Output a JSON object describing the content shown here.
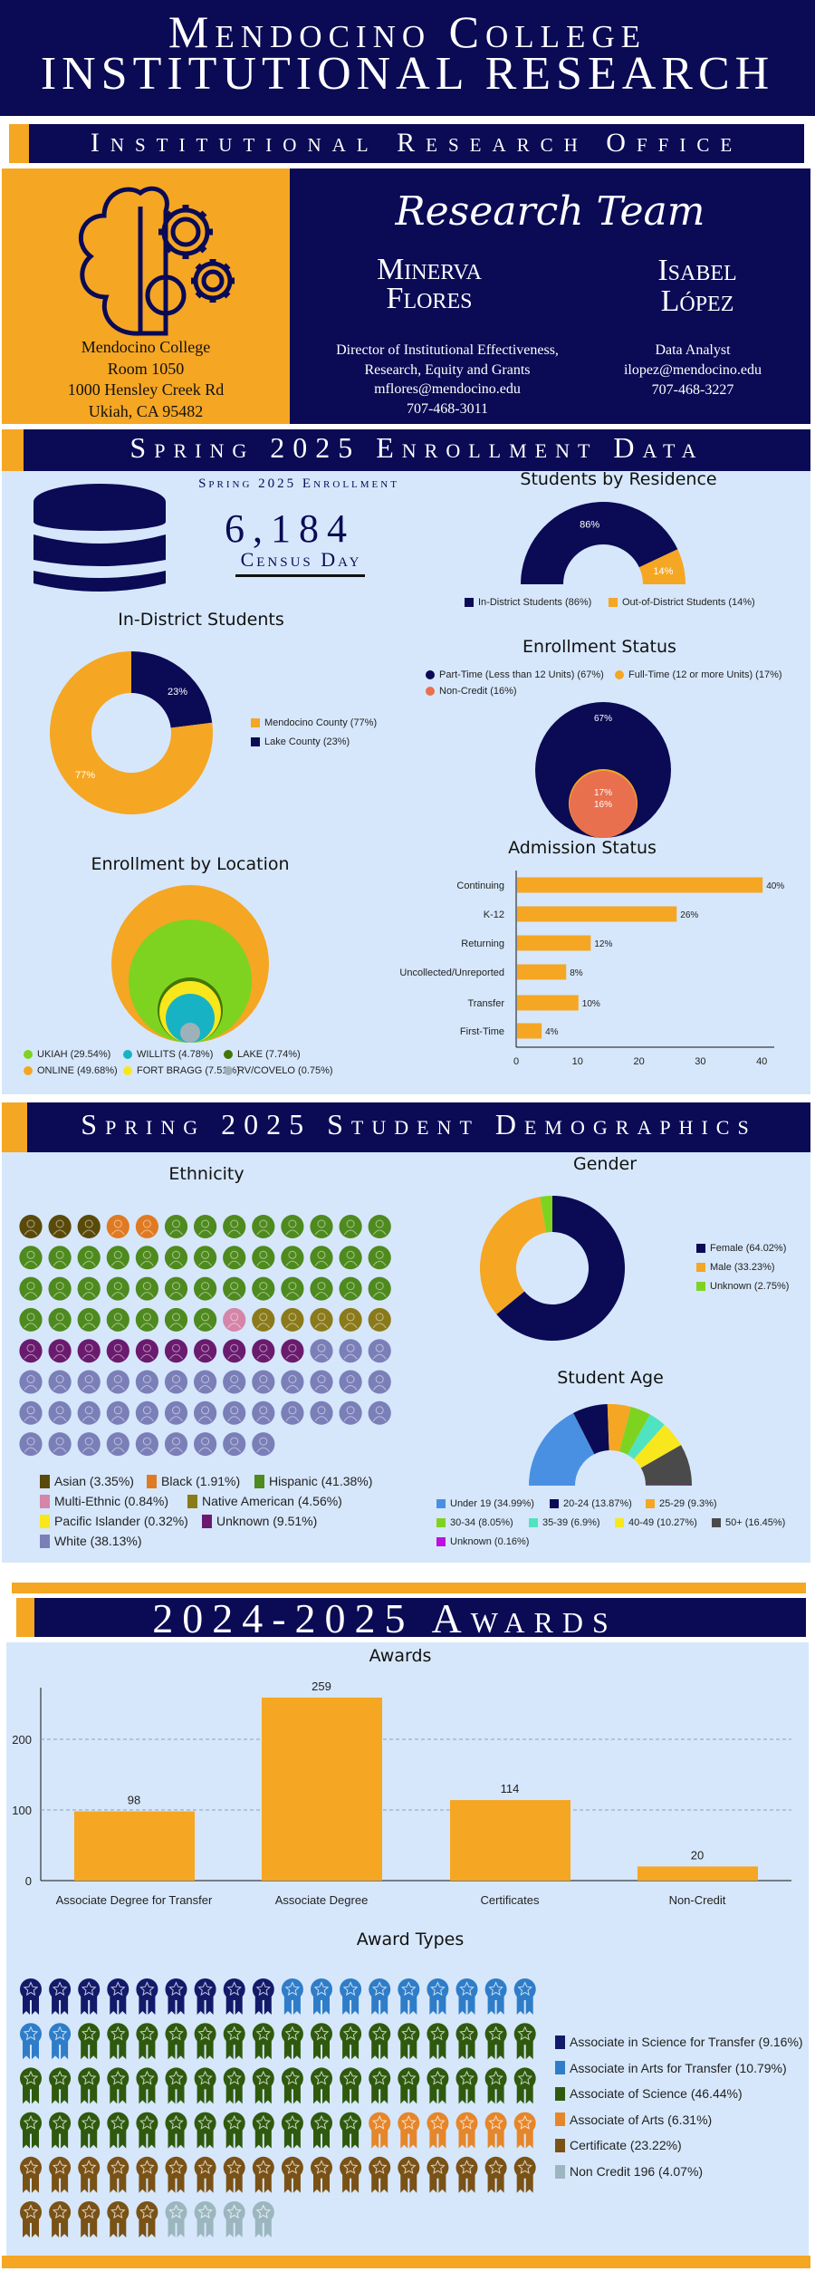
{
  "header": {
    "title_line1": "Mendocino College",
    "title_line2": "INSTITUTIONAL RESEARCH",
    "office": "Institutional Research Office"
  },
  "contact": {
    "address": [
      "Mendocino College",
      "Room 1050",
      "1000 Hensley Creek Rd",
      "Ukiah, CA 95482"
    ],
    "team_title": "Research Team",
    "members": [
      {
        "name_line1": "Minerva",
        "name_line2": "Flores",
        "details": [
          "Director of Institutional Effectiveness,",
          "Research, Equity and Grants",
          "mflores@mendocino.edu",
          "707-468-3011"
        ]
      },
      {
        "name_line1": "Isabel",
        "name_line2": "López",
        "details": [
          "Data Analyst",
          "ilopez@mendocino.edu",
          "707-468-3227"
        ]
      }
    ]
  },
  "enrollment": {
    "header": "Spring 2025 Enrollment Data",
    "summary_label": "Spring 2025 Enrollment",
    "total": "6,184",
    "total_caption": "Census Day"
  },
  "demographics": {
    "header": "Spring 2025 Student Demographics"
  },
  "awards": {
    "header": "2024-2025 Awards"
  },
  "colors": {
    "navy": "#0a0a55",
    "orange": "#f5a623",
    "panel": "#d6e7fb"
  },
  "chart_data": [
    {
      "type": "pie",
      "variant": "semi-donut",
      "title": "Students by Residence",
      "series": [
        {
          "name": "In-District Students",
          "value": 86,
          "label": "86%",
          "legend": "In-District Students (86%)",
          "color": "#0a0a55"
        },
        {
          "name": "Out-of-District Students",
          "value": 14,
          "label": "14%",
          "legend": "Out-of-District Students (14%)",
          "color": "#f5a623"
        }
      ]
    },
    {
      "type": "pie",
      "variant": "donut",
      "title": "In-District Students",
      "series": [
        {
          "name": "Lake County",
          "value": 23,
          "label": "23%",
          "legend": "Lake County (23%)",
          "color": "#0a0a55"
        },
        {
          "name": "Mendocino County",
          "value": 77,
          "label": "77%",
          "legend": "Mendocino County (77%)",
          "color": "#f5a623"
        }
      ]
    },
    {
      "type": "nested-circles",
      "title": "Enrollment Status",
      "series": [
        {
          "name": "Part-Time (Less than 12 Units)",
          "value": 67,
          "label": "67%",
          "legend": "Part-Time (Less than 12 Units) (67%)",
          "color": "#0a0a55"
        },
        {
          "name": "Full-Time (12 or more Units)",
          "value": 17,
          "label": "17%",
          "legend": "Full-Time (12 or more Units) (17%)",
          "color": "#f5a623"
        },
        {
          "name": "Non-Credit",
          "value": 16,
          "label": "16%",
          "legend": "Non-Credit (16%)",
          "color": "#e8704f"
        }
      ]
    },
    {
      "type": "bar",
      "orientation": "horizontal",
      "title": "Admission Status",
      "xlim": [
        0,
        40
      ],
      "xticks": [
        "0",
        "10",
        "20",
        "30",
        "40"
      ],
      "categories": [
        "Continuing",
        "K-12",
        "Returning",
        "Uncollected/Unreported",
        "Transfer",
        "First-Time"
      ],
      "values": [
        40,
        26,
        12,
        8,
        10,
        4
      ],
      "labels": [
        "40%",
        "26%",
        "12%",
        "8%",
        "10%",
        "4%"
      ],
      "color": "#f5a623"
    },
    {
      "type": "nested-circles",
      "title": "Enrollment by Location",
      "series": [
        {
          "name": "ONLINE",
          "value": 49.68,
          "legend": "ONLINE (49.68%)",
          "color": "#f5a623"
        },
        {
          "name": "UKIAH",
          "value": 29.54,
          "legend": "UKIAH (29.54%)",
          "color": "#7ed321"
        },
        {
          "name": "LAKE",
          "value": 7.74,
          "legend": "LAKE (7.74%)",
          "color": "#417505"
        },
        {
          "name": "FORT BRAGG",
          "value": 7.51,
          "legend": "FORT BRAGG (7.51%)",
          "color": "#f8e71c"
        },
        {
          "name": "WILLITS",
          "value": 4.78,
          "legend": "WILLITS (4.78%)",
          "color": "#17b3c4"
        },
        {
          "name": "RV/COVELO",
          "value": 0.75,
          "legend": "RV/COVELO (0.75%)",
          "color": "#9fb1b8"
        }
      ]
    },
    {
      "type": "pictograph",
      "title": "Ethnicity",
      "series": [
        {
          "name": "Asian",
          "value": 3.35,
          "icons": 3,
          "legend": "Asian (3.35%)",
          "color": "#5a4a0a"
        },
        {
          "name": "Black",
          "value": 1.91,
          "icons": 2,
          "legend": "Black (1.91%)",
          "color": "#e07a22"
        },
        {
          "name": "Hispanic",
          "value": 41.38,
          "icons": 41,
          "legend": "Hispanic (41.38%)",
          "color": "#4e8a1e"
        },
        {
          "name": "Multi-Ethnic",
          "value": 0.84,
          "icons": 1,
          "legend": "Multi-Ethnic (0.84%)",
          "color": "#d585a8"
        },
        {
          "name": "Native American",
          "value": 4.56,
          "icons": 5,
          "legend": "Native American (4.56%)",
          "color": "#8a7a1a"
        },
        {
          "name": "Pacific Islander",
          "value": 0.32,
          "icons": 0,
          "legend": "Pacific Islander (0.32%)",
          "color": "#f8e71c"
        },
        {
          "name": "Unknown",
          "value": 9.51,
          "icons": 10,
          "legend": "Unknown (9.51%)",
          "color": "#6a1b6e"
        },
        {
          "name": "White",
          "value": 38.13,
          "icons": 38,
          "legend": "White (38.13%)",
          "color": "#7b7fb8"
        }
      ]
    },
    {
      "type": "pie",
      "variant": "donut",
      "title": "Gender",
      "series": [
        {
          "name": "Female",
          "value": 64.02,
          "legend": "Female (64.02%)",
          "color": "#0a0a55"
        },
        {
          "name": "Male",
          "value": 33.23,
          "legend": "Male (33.23%)",
          "color": "#f5a623"
        },
        {
          "name": "Unknown",
          "value": 2.75,
          "legend": "Unknown (2.75%)",
          "color": "#7ed321"
        }
      ]
    },
    {
      "type": "pie",
      "variant": "semi-donut",
      "title": "Student Age",
      "series": [
        {
          "name": "Under 19",
          "value": 34.99,
          "legend": "Under 19 (34.99%)",
          "color": "#4a90e2"
        },
        {
          "name": "20-24",
          "value": 13.87,
          "legend": "20-24 (13.87%)",
          "color": "#0a0a55"
        },
        {
          "name": "25-29",
          "value": 9.3,
          "legend": "25-29 (9.3%)",
          "color": "#f5a623"
        },
        {
          "name": "30-34",
          "value": 8.05,
          "legend": "30-34 (8.05%)",
          "color": "#7ed321"
        },
        {
          "name": "35-39",
          "value": 6.9,
          "legend": "35-39 (6.9%)",
          "color": "#50e3c2"
        },
        {
          "name": "40-49",
          "value": 10.27,
          "legend": "40-49 (10.27%)",
          "color": "#f8e71c"
        },
        {
          "name": "50+",
          "value": 16.45,
          "legend": "50+ (16.45%)",
          "color": "#4a4a4a"
        },
        {
          "name": "Unknown",
          "value": 0.16,
          "legend": "Unknown (0.16%)",
          "color": "#bd10e0"
        }
      ]
    },
    {
      "type": "bar",
      "title": "Awards",
      "ylim": [
        0,
        270
      ],
      "yticks": [
        "0",
        "100",
        "200"
      ],
      "grid": true,
      "categories": [
        "Associate Degree for Transfer",
        "Associate Degree",
        "Certificates",
        "Non-Credit"
      ],
      "values": [
        98,
        259,
        114,
        20
      ],
      "labels": [
        "98",
        "259",
        "114",
        "20"
      ],
      "color": "#f5a623"
    },
    {
      "type": "pictograph",
      "title": "Award Types",
      "series": [
        {
          "name": "Associate in Science for Transfer",
          "value": 9.16,
          "icons": 9,
          "legend": "Associate in Science for Transfer (9.16%)",
          "color": "#141a6a"
        },
        {
          "name": "Associate in Arts for Transfer",
          "value": 10.79,
          "icons": 11,
          "legend": "Associate in Arts for Transfer (10.79%)",
          "color": "#2f7dc8"
        },
        {
          "name": "Associate of Science",
          "value": 46.44,
          "icons": 46,
          "legend": "Associate of Science (46.44%)",
          "color": "#2f5a0e"
        },
        {
          "name": "Associate of Arts",
          "value": 6.31,
          "icons": 6,
          "legend": "Associate of Arts (6.31%)",
          "color": "#e6862a"
        },
        {
          "name": "Certificate",
          "value": 23.22,
          "icons": 23,
          "legend": "Certificate (23.22%)",
          "color": "#7a5216"
        },
        {
          "name": "Non Credit 196",
          "value": 4.07,
          "icons": 4,
          "legend": "Non Credit 196 (4.07%)",
          "color": "#9cb6bf"
        }
      ]
    }
  ]
}
